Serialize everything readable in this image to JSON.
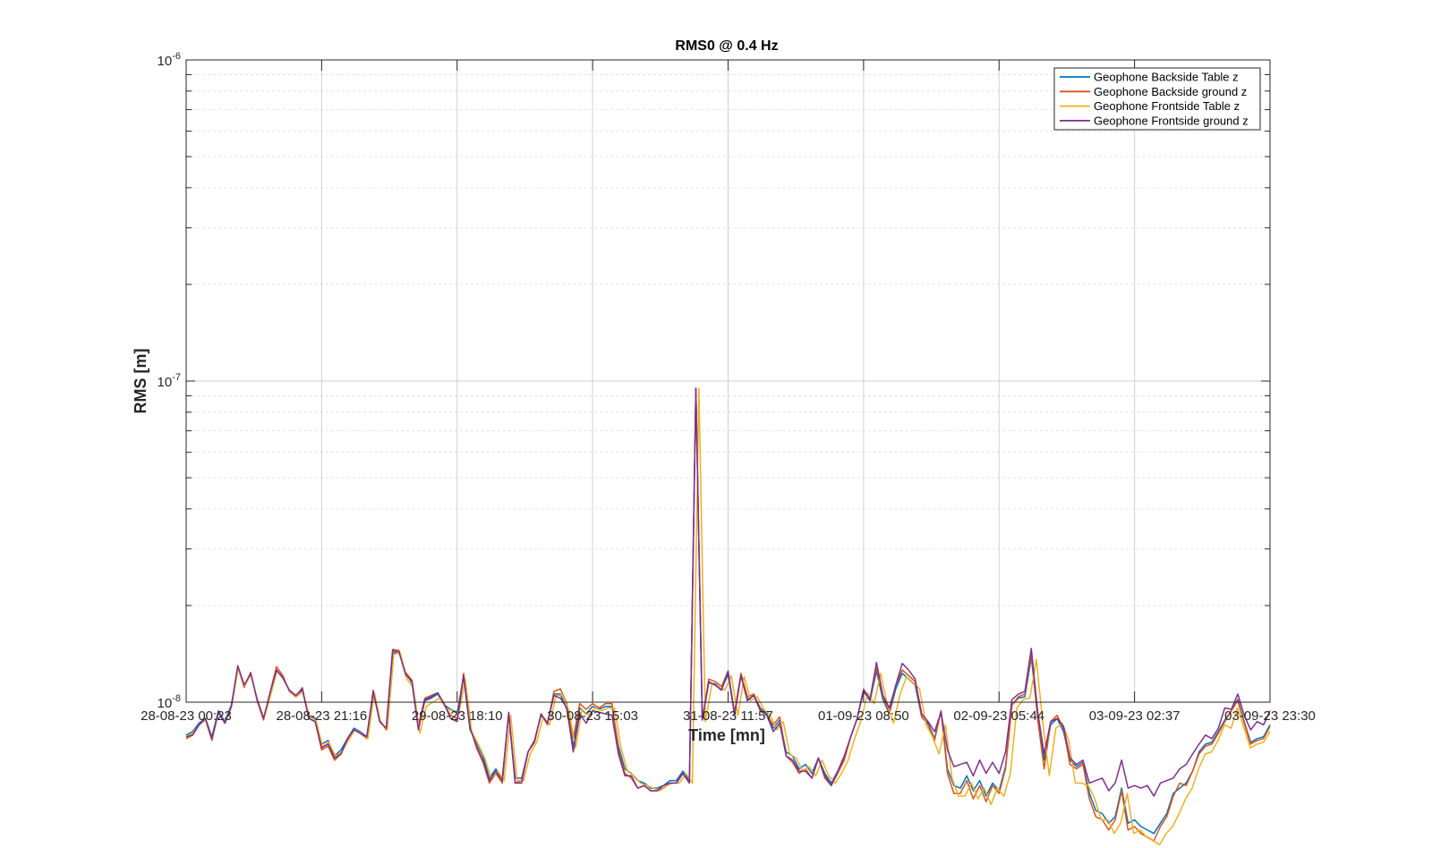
{
  "chart_data": {
    "type": "line",
    "title": "RMS0 @ 0.4 Hz",
    "xlabel": "Time [mn]",
    "ylabel": "RMS [m]",
    "yscale": "log",
    "ylim": [
      1e-08,
      1e-06
    ],
    "ytick_labels": [
      {
        "base": "10",
        "exp": "-8"
      },
      {
        "base": "10",
        "exp": "-7"
      },
      {
        "base": "10",
        "exp": "-6"
      }
    ],
    "xtick_labels": [
      "28-08-23 00:23",
      "28-08-23 21:16",
      "29-08-23 18:10",
      "30-08-23 15:03",
      "31-08-23 11:57",
      "01-09-23 08:50",
      "02-09-23 05:44",
      "03-09-23 02:37",
      "03-09-23 23:30"
    ],
    "grid": true,
    "minor_grid": true,
    "legend_position": "top-right",
    "colors": [
      "#0072BD",
      "#D95319",
      "#EDB120",
      "#7E2F8E"
    ],
    "series": [
      {
        "name": "Geophone Backside Table z",
        "values": [
          7.9,
          8.1,
          8.6,
          8.9,
          7.8,
          9.4,
          8.7,
          9.8,
          12.8,
          11.2,
          12.3,
          10.2,
          8.9,
          10.6,
          12.6,
          11.9,
          10.9,
          10.5,
          10.9,
          9.1,
          8.9,
          7.4,
          7.6,
          6.8,
          7.1,
          7.7,
          8.3,
          8.1,
          7.8,
          10.8,
          8.7,
          8.3,
          14.2,
          14.4,
          12.3,
          11.5,
          8.3,
          10.1,
          10.3,
          10.6,
          9.8,
          9.5,
          9.3,
          12,
          8.2,
          7.5,
          6.8,
          5.8,
          6.2,
          5.8,
          9.2,
          5.8,
          5.8,
          7,
          7.6,
          9.1,
          8.6,
          10.6,
          10.6,
          9.5,
          7.3,
          9.6,
          9.2,
          9.7,
          9.5,
          9.7,
          9.7,
          7.3,
          6.2,
          6,
          5.7,
          5.6,
          5.4,
          5.4,
          5.5,
          5.7,
          5.7,
          6.1,
          5.7,
          95,
          8.8,
          11.5,
          11.4,
          11,
          12.2,
          9.2,
          12.1,
          10.2,
          10.5,
          9.6,
          9.2,
          8.3,
          8.8,
          7,
          6.8,
          6.2,
          6.4,
          6,
          6.7,
          6,
          5.6,
          6.1,
          6.7,
          7.8,
          8.9,
          10.8,
          10.1,
          12.5,
          10.2,
          9.2,
          11,
          12.3,
          11.8,
          11.3,
          9,
          8.6,
          7.7,
          9.4,
          6.2,
          5.5,
          5.4,
          5.9,
          5.3,
          5.7,
          5.1,
          5.6,
          5.3,
          6.3,
          9.8,
          10.3,
          10.4,
          13.8,
          9,
          6.6,
          8.5,
          8.9,
          8.1,
          6.6,
          6.3,
          6.5,
          5.2,
          4.6,
          4.5,
          4.2,
          4.4,
          5.4,
          4.2,
          4.3,
          4.1,
          4,
          3.9,
          4.2,
          4.5,
          5.2,
          5.4,
          5.6,
          6.1,
          7,
          7.4,
          7.5,
          8.1,
          8.8,
          9.4,
          10.2,
          8.7,
          7.5,
          7.7,
          7.8,
          8.5
        ]
      },
      {
        "name": "Geophone Backside ground z",
        "values": [
          7.7,
          7.9,
          8.5,
          8.8,
          7.6,
          9.3,
          8.6,
          9.7,
          12.9,
          11.1,
          12.4,
          10.1,
          8.8,
          10.7,
          12.9,
          12.1,
          10.8,
          10.4,
          11.1,
          8.9,
          8.7,
          7.1,
          7.3,
          6.6,
          6.9,
          7.6,
          8.2,
          8,
          7.7,
          10.9,
          8.8,
          8.2,
          14.6,
          14.5,
          12.4,
          11.7,
          8.5,
          10.3,
          10.5,
          10.7,
          9.8,
          9.1,
          8.9,
          12.3,
          8.4,
          7.2,
          6.5,
          5.6,
          6,
          5.6,
          9.2,
          5.6,
          5.7,
          7,
          7.5,
          9.2,
          8.5,
          10.8,
          11,
          9.9,
          7.7,
          9.9,
          9.5,
          9.9,
          9.6,
          9.9,
          9.9,
          7.1,
          6,
          5.8,
          5.4,
          5.5,
          5.3,
          5.3,
          5.4,
          5.6,
          5.6,
          6,
          5.6,
          95,
          8.8,
          11.8,
          11.6,
          11.2,
          12.5,
          9.3,
          12.3,
          10.4,
          10.6,
          9.5,
          9.1,
          8.5,
          9,
          6.8,
          6.5,
          6,
          6.2,
          5.8,
          6.7,
          5.8,
          5.5,
          6,
          6.6,
          7.8,
          8.9,
          11,
          10.2,
          12.8,
          10.4,
          9.3,
          11.3,
          12.6,
          12.1,
          11.6,
          9,
          8.5,
          7.6,
          9.4,
          6,
          5.2,
          5.2,
          5.7,
          5,
          5.5,
          4.9,
          5.5,
          5.2,
          6.2,
          9.8,
          10.4,
          10.6,
          14.2,
          8.8,
          6.2,
          8.7,
          9.1,
          8.3,
          6.4,
          6.2,
          6.4,
          5,
          4.4,
          4.3,
          4,
          4.3,
          5.3,
          4,
          4.1,
          3.9,
          3.8,
          3.7,
          4.1,
          4.4,
          5.1,
          5.6,
          5.5,
          6.1,
          6.9,
          7.3,
          7.4,
          8,
          8.7,
          9.4,
          10.1,
          8.6,
          7.4,
          7.6,
          7.7,
          8.4
        ]
      },
      {
        "name": "Geophone Frontside Table z",
        "values": [
          7.8,
          8,
          8.5,
          8.8,
          7.7,
          9.3,
          8.6,
          9.7,
          12.7,
          11.2,
          12.2,
          10.1,
          8.9,
          10.5,
          12.5,
          11.8,
          10.8,
          10.4,
          10.8,
          9,
          8.8,
          7.3,
          7.5,
          6.8,
          7,
          7.6,
          8.2,
          8,
          7.7,
          10.7,
          8.6,
          8.2,
          14.1,
          14.2,
          11.8,
          11.1,
          8,
          9.7,
          10,
          10.3,
          9.6,
          9.4,
          9.2,
          11.8,
          8.1,
          7.4,
          6.7,
          5.8,
          6.1,
          5.7,
          9.1,
          5.7,
          5.7,
          6.9,
          7.5,
          9,
          8.5,
          10.5,
          10.5,
          9.4,
          7.2,
          9.5,
          9.1,
          9.6,
          9.4,
          9.6,
          9.6,
          7.2,
          6.1,
          5.9,
          5.6,
          5.5,
          5.4,
          5.3,
          5.5,
          5.6,
          5.6,
          6,
          5.6,
          95,
          8.7,
          11.4,
          11.2,
          10.9,
          12.1,
          9.1,
          12,
          10.1,
          10.4,
          9.5,
          9.1,
          8.2,
          8.7,
          6.9,
          6.7,
          6.1,
          6.3,
          5.9,
          6.6,
          5.9,
          5.6,
          6,
          6.6,
          7.7,
          8.8,
          10.7,
          9.9,
          12.3,
          9.9,
          8.6,
          10.6,
          12,
          11.5,
          11,
          8.5,
          7.8,
          6.9,
          8.5,
          5.8,
          5.1,
          5.1,
          5.6,
          5,
          5.4,
          4.8,
          5.4,
          5.1,
          6,
          9.6,
          10.2,
          10.3,
          13.6,
          8.6,
          5.9,
          8.3,
          8.6,
          7.6,
          5.6,
          5.6,
          5.5,
          5,
          4.3,
          4.3,
          3.9,
          4.2,
          5.2,
          3.9,
          4,
          3.8,
          3.7,
          3.6,
          3.9,
          4.1,
          4.5,
          5,
          5.4,
          6.2,
          6.9,
          7,
          7.6,
          8.5,
          8.3,
          9.6,
          8.3,
          7.2,
          7.4,
          7.5,
          8.1
        ]
      },
      {
        "name": "Geophone Frontside ground z",
        "values": [
          7.8,
          7.9,
          8.5,
          8.9,
          7.7,
          9.3,
          8.6,
          9.7,
          13,
          11.3,
          12.3,
          10.2,
          8.9,
          10.7,
          12.6,
          11.9,
          10.9,
          10.5,
          11,
          8.9,
          8.7,
          7.2,
          7.4,
          6.7,
          6.9,
          7.7,
          8.2,
          8,
          7.8,
          10.8,
          8.7,
          8.3,
          14.5,
          14.3,
          12.2,
          11.6,
          8.2,
          10.2,
          10.4,
          10.7,
          9.9,
          8.9,
          8.7,
          12.1,
          8.3,
          7.3,
          6.6,
          5.7,
          6.1,
          5.7,
          9.3,
          5.6,
          5.6,
          7,
          7.6,
          9.2,
          8.6,
          10.5,
          10.3,
          9.6,
          7,
          9.2,
          8.6,
          9.4,
          9.3,
          9.2,
          9.1,
          6.9,
          5.9,
          5.9,
          5.4,
          5.5,
          5.3,
          5.3,
          5.5,
          5.6,
          5.6,
          6,
          5.6,
          95,
          8.8,
          11.6,
          11.3,
          10.9,
          12.5,
          9.1,
          12.1,
          10.1,
          10.5,
          9.4,
          9.1,
          8.1,
          8.6,
          6.8,
          6.6,
          6.1,
          6.1,
          5.8,
          6.7,
          5.9,
          5.5,
          6.1,
          6.8,
          7.8,
          8.9,
          10.9,
          10.2,
          13.3,
          10.5,
          9.6,
          11.3,
          13.2,
          12.6,
          11.8,
          9.2,
          8.7,
          8.1,
          9.3,
          7.1,
          6.3,
          6.4,
          6.5,
          5.9,
          6.6,
          6,
          6.5,
          6,
          7,
          10.2,
          10.6,
          10.8,
          14.7,
          9.3,
          6.9,
          8.7,
          8.9,
          8.4,
          6.7,
          6.4,
          6.6,
          5.6,
          5.7,
          5.8,
          5.3,
          5.6,
          6.6,
          5.4,
          5.5,
          5.4,
          5.5,
          5.1,
          5.6,
          5.7,
          5.8,
          6.2,
          6.4,
          6.9,
          7.4,
          7.9,
          7.7,
          8.3,
          9.6,
          9.5,
          10.6,
          9.1,
          8.2,
          8.7,
          8.5,
          9.4
        ]
      }
    ]
  }
}
